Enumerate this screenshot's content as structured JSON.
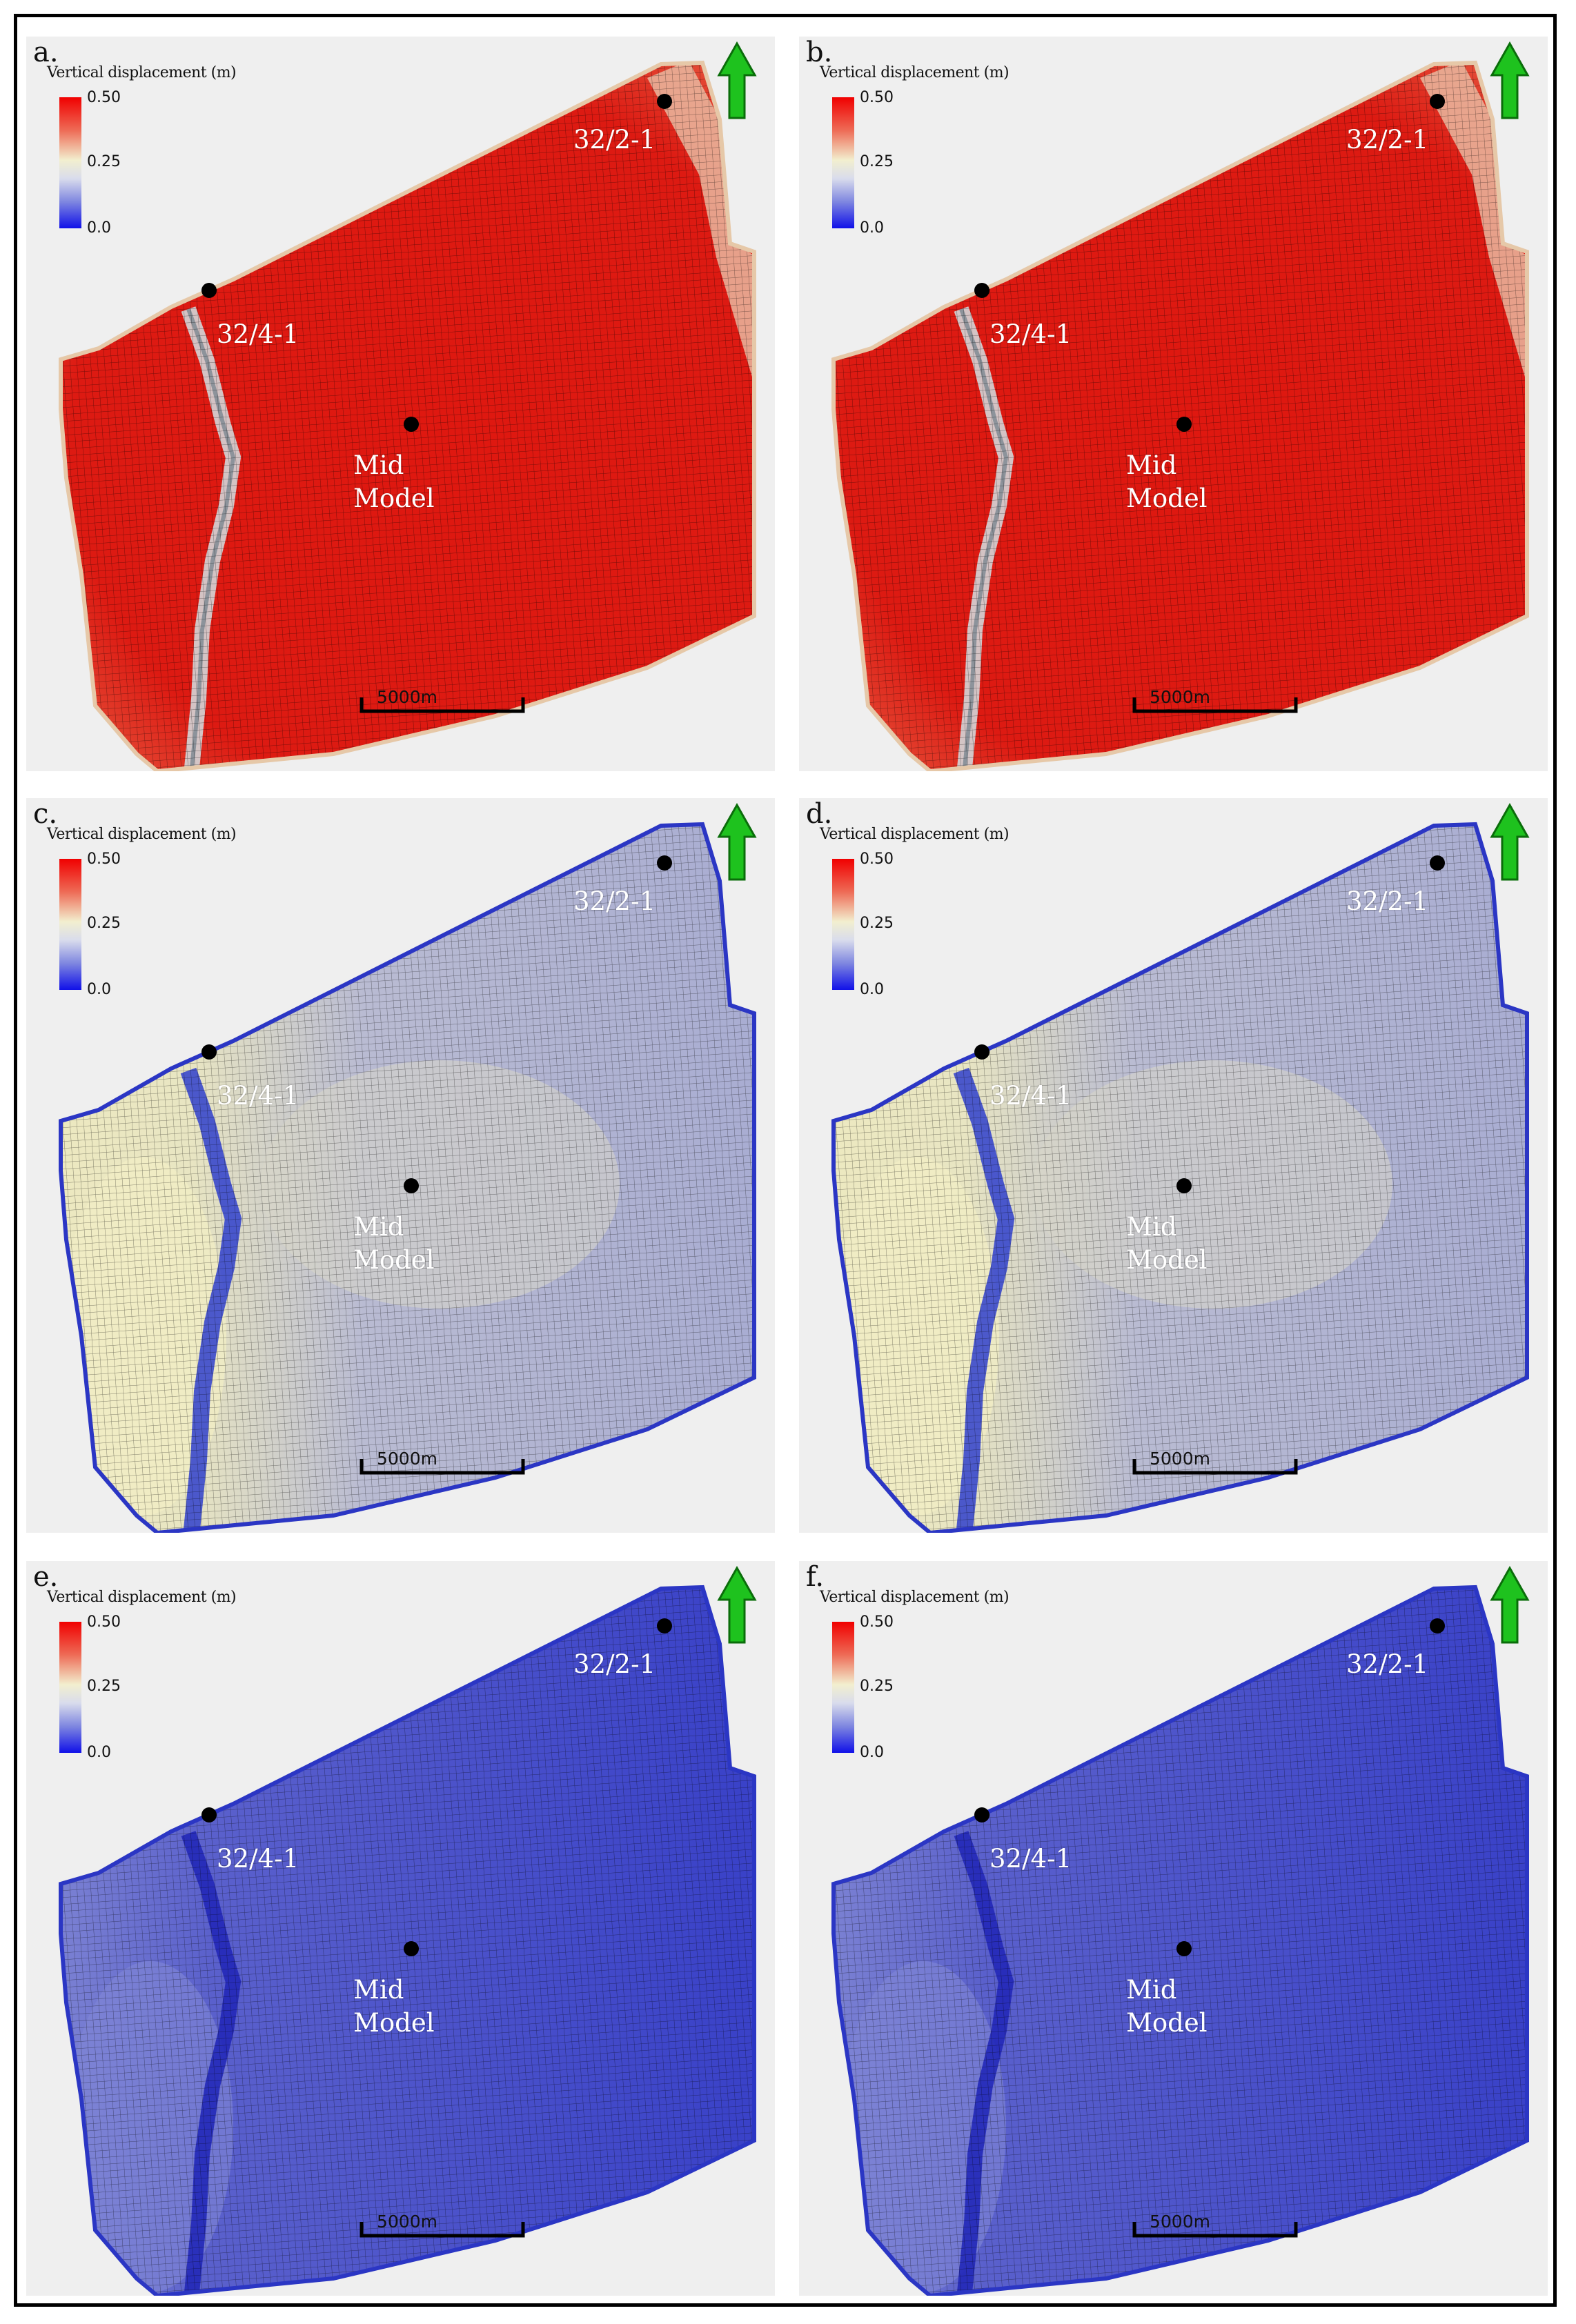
{
  "panels": [
    {
      "label": "a.",
      "scheme": "red",
      "legend_title": "Vertical displacement (m)"
    },
    {
      "label": "b.",
      "scheme": "red",
      "legend_title": "Vertical displacement (m)"
    },
    {
      "label": "c.",
      "scheme": "pale",
      "legend_title": "Vertical displacement (m)"
    },
    {
      "label": "d.",
      "scheme": "pale",
      "legend_title": "Vertical displacement (m)"
    },
    {
      "label": "e.",
      "scheme": "blue",
      "legend_title": "Vertical displacement (m)"
    },
    {
      "label": "f.",
      "scheme": "blue",
      "legend_title": "Vertical displacement (m)"
    }
  ],
  "legend": {
    "max": "0.50",
    "mid": "0.25",
    "min": "0.0",
    "colors": {
      "high": "#f00000",
      "mid": "#f2efcf",
      "low": "#1010e8"
    }
  },
  "wells": {
    "north": "32/2-1",
    "west": "32/4-1",
    "mid_line1": "Mid",
    "mid_line2": "Model"
  },
  "scale_bar": "5000m",
  "north_arrow": {
    "icon": "north-arrow-icon",
    "color": "#1ec21e"
  },
  "schemes": {
    "red": {
      "base": "#dd1a12",
      "edge": "#e9b9a0",
      "fault": "#d3d6d8",
      "fault_line": "#8d939b",
      "dark": "#6b7390"
    },
    "pale": {
      "base": "#a8acd2",
      "edge": "#6a72d0",
      "fault": "#2f3fcc",
      "bright": "#eeeac0",
      "mid": "#c9c9cc"
    },
    "blue": {
      "base": "#3840c8",
      "edge": "#2a34c8",
      "fault": "#2228b8",
      "light": "#8288d4"
    }
  }
}
